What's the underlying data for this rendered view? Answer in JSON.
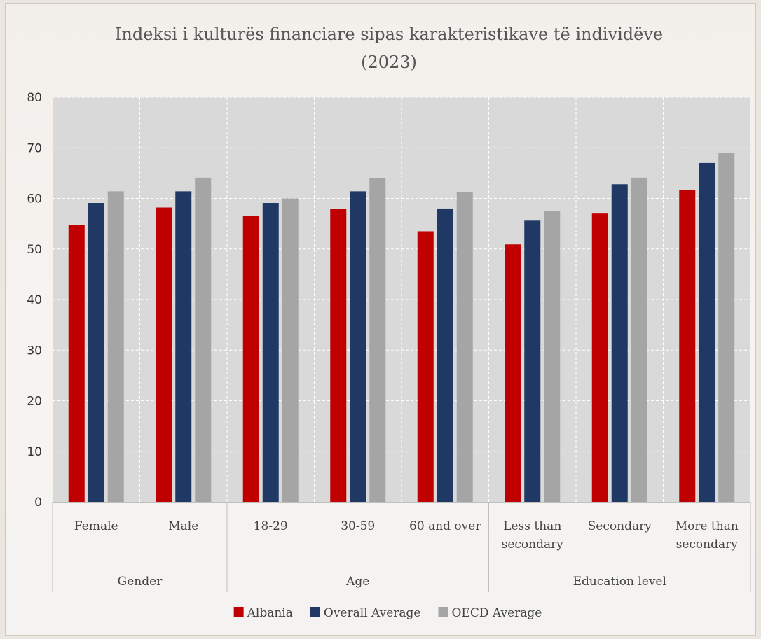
{
  "chart_data": {
    "type": "bar",
    "title": "Indeksi i kulturës financiare sipas karakteristikave të individëve (2023)",
    "title_lines": [
      "Indeksi i kulturës financiare sipas karakteristikave të individëve",
      "(2023)"
    ],
    "xlabel": "",
    "ylabel": "",
    "ylim": [
      0,
      80
    ],
    "yticks": [
      0,
      10,
      20,
      30,
      40,
      50,
      60,
      70,
      80
    ],
    "grid": true,
    "legend_position": "bottom",
    "categories": [
      [
        "Female"
      ],
      [
        "Male"
      ],
      [
        "18-29"
      ],
      [
        "30-59"
      ],
      [
        "60 and over"
      ],
      [
        "Less than",
        "secondary"
      ],
      [
        "Secondary"
      ],
      [
        "More than",
        "secondary"
      ]
    ],
    "groups": [
      {
        "label": "Gender",
        "count": 2
      },
      {
        "label": "Age",
        "count": 3
      },
      {
        "label": "Education level",
        "count": 3
      }
    ],
    "series": [
      {
        "name": "Albania",
        "color": "#c00000",
        "values": [
          54.7,
          58.2,
          56.5,
          57.9,
          53.5,
          50.9,
          57.0,
          61.7
        ]
      },
      {
        "name": "Overall Average",
        "color": "#1f3864",
        "values": [
          59.1,
          61.4,
          59.1,
          61.4,
          58.0,
          55.6,
          62.8,
          67.0
        ]
      },
      {
        "name": "OECD Average",
        "color": "#a5a5a5",
        "values": [
          61.4,
          64.1,
          60.0,
          64.0,
          61.3,
          57.5,
          64.1,
          69.0
        ]
      }
    ]
  }
}
